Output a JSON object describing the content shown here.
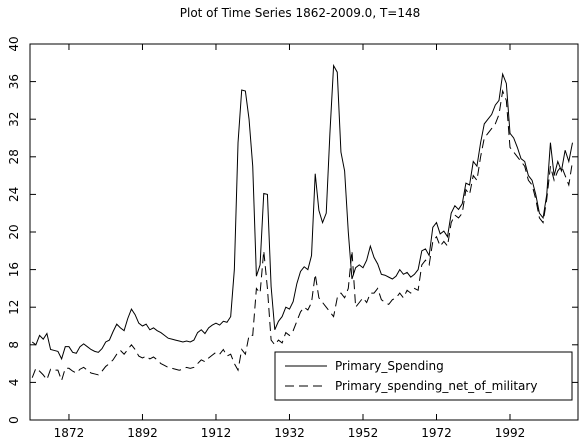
{
  "chart_data": {
    "type": "line",
    "title": "Plot of Time Series 1862-2009.0, T=148",
    "x": [
      1862,
      1863,
      1864,
      1865,
      1866,
      1867,
      1868,
      1869,
      1870,
      1871,
      1872,
      1873,
      1874,
      1875,
      1876,
      1877,
      1878,
      1879,
      1880,
      1881,
      1882,
      1883,
      1884,
      1885,
      1886,
      1887,
      1888,
      1889,
      1890,
      1891,
      1892,
      1893,
      1894,
      1895,
      1896,
      1897,
      1898,
      1899,
      1900,
      1901,
      1902,
      1903,
      1904,
      1905,
      1906,
      1907,
      1908,
      1909,
      1910,
      1911,
      1912,
      1913,
      1914,
      1915,
      1916,
      1917,
      1918,
      1919,
      1920,
      1921,
      1922,
      1923,
      1924,
      1925,
      1926,
      1927,
      1928,
      1929,
      1930,
      1931,
      1932,
      1933,
      1934,
      1935,
      1936,
      1937,
      1938,
      1939,
      1940,
      1941,
      1942,
      1943,
      1944,
      1945,
      1946,
      1947,
      1948,
      1949,
      1950,
      1951,
      1952,
      1953,
      1954,
      1955,
      1956,
      1957,
      1958,
      1959,
      1960,
      1961,
      1962,
      1963,
      1964,
      1965,
      1966,
      1967,
      1968,
      1969,
      1970,
      1971,
      1972,
      1973,
      1974,
      1975,
      1976,
      1977,
      1978,
      1979,
      1980,
      1981,
      1982,
      1983,
      1984,
      1985,
      1986,
      1987,
      1988,
      1989,
      1990,
      1991,
      1992,
      1993,
      1994,
      1995,
      1996,
      1997,
      1998,
      1999,
      2000,
      2001,
      2002,
      2003,
      2004,
      2005,
      2006,
      2007,
      2008,
      2009
    ],
    "series": [
      {
        "name": "Primary_Spending",
        "color": "#000000",
        "linestyle": "solid",
        "values": [
          8.3,
          8.0,
          9.0,
          8.6,
          9.2,
          7.5,
          7.4,
          7.3,
          6.5,
          7.8,
          7.8,
          7.2,
          7.1,
          7.8,
          8.1,
          7.8,
          7.5,
          7.3,
          7.2,
          7.6,
          8.3,
          8.5,
          9.4,
          10.2,
          9.8,
          9.5,
          10.8,
          11.8,
          11.2,
          10.3,
          10.0,
          10.2,
          9.6,
          9.8,
          9.5,
          9.3,
          9.0,
          8.7,
          8.6,
          8.5,
          8.4,
          8.3,
          8.4,
          8.3,
          8.5,
          9.3,
          9.6,
          9.2,
          9.8,
          10.1,
          10.3,
          10.1,
          10.5,
          10.4,
          11.0,
          16.0,
          29.5,
          35.1,
          35.0,
          32.0,
          27.0,
          15.3,
          16.5,
          24.1,
          24.0,
          14.2,
          9.6,
          10.5,
          11.0,
          12.0,
          11.8,
          12.6,
          14.5,
          15.8,
          16.3,
          16.0,
          17.5,
          26.2,
          22.3,
          21.0,
          22.0,
          30.5,
          37.7,
          37.0,
          28.5,
          26.5,
          20.0,
          15.0,
          16.2,
          16.5,
          16.2,
          17.0,
          18.5,
          17.3,
          16.6,
          15.5,
          15.4,
          15.2,
          15.0,
          15.3,
          16.0,
          15.5,
          15.7,
          15.2,
          15.5,
          16.0,
          18.0,
          18.2,
          17.5,
          20.5,
          21.0,
          19.8,
          20.1,
          19.5,
          22.0,
          22.8,
          22.4,
          23.0,
          25.2,
          25.0,
          27.5,
          27.0,
          29.5,
          31.5,
          32.0,
          32.5,
          33.5,
          34.0,
          36.8,
          35.8,
          30.5,
          30.0,
          29.0,
          27.8,
          27.5,
          26.0,
          25.5,
          24.0,
          22.0,
          21.5,
          24.0,
          29.5,
          26.0,
          27.5,
          26.5,
          28.7,
          27.5,
          29.5
        ]
      },
      {
        "name": "Primary_spending_net_of_military",
        "color": "#000000",
        "linestyle": "dashed",
        "values": [
          4.5,
          5.5,
          5.2,
          4.8,
          4.3,
          5.4,
          5.3,
          5.3,
          4.2,
          5.5,
          5.5,
          5.2,
          5.0,
          5.4,
          5.6,
          5.3,
          5.0,
          4.9,
          4.8,
          5.2,
          5.7,
          6.0,
          6.4,
          7.0,
          7.4,
          7.0,
          7.5,
          8.0,
          7.5,
          6.8,
          6.6,
          6.8,
          6.5,
          6.7,
          6.4,
          6.0,
          5.8,
          5.6,
          5.5,
          5.4,
          5.3,
          5.4,
          5.6,
          5.5,
          5.6,
          6.0,
          6.4,
          6.2,
          6.6,
          6.9,
          7.2,
          7.0,
          7.5,
          6.8,
          7.0,
          6.0,
          5.3,
          7.5,
          7.0,
          9.0,
          9.0,
          14.0,
          13.5,
          18.0,
          14.0,
          8.5,
          8.0,
          8.5,
          8.2,
          9.3,
          9.0,
          9.5,
          10.5,
          11.5,
          12.0,
          11.7,
          12.5,
          15.5,
          13.0,
          12.5,
          12.0,
          11.5,
          11.0,
          13.0,
          13.5,
          13.0,
          14.0,
          18.0,
          12.0,
          12.5,
          13.0,
          12.5,
          13.5,
          13.5,
          14.0,
          12.8,
          12.5,
          12.3,
          12.8,
          13.0,
          13.5,
          13.0,
          13.8,
          13.5,
          14.0,
          13.8,
          16.5,
          17.0,
          16.5,
          19.0,
          19.5,
          18.5,
          19.0,
          18.5,
          21.0,
          21.8,
          21.5,
          22.0,
          24.5,
          24.0,
          26.0,
          25.5,
          28.0,
          30.0,
          30.5,
          31.0,
          31.5,
          32.5,
          35.0,
          34.0,
          29.0,
          28.5,
          28.0,
          27.5,
          27.0,
          25.5,
          25.0,
          23.5,
          21.5,
          21.0,
          23.5,
          27.0,
          25.5,
          26.5,
          27.0,
          26.0,
          25.0,
          27.5
        ]
      }
    ],
    "xlim": [
      1861.4,
      2010.5
    ],
    "xticks": [
      1872,
      1892,
      1912,
      1932,
      1952,
      1972,
      1992
    ],
    "ylim": [
      0,
      40
    ],
    "yticks": [
      0,
      4,
      8,
      12,
      16,
      20,
      24,
      28,
      32,
      36,
      40
    ],
    "legend": "lower right"
  }
}
